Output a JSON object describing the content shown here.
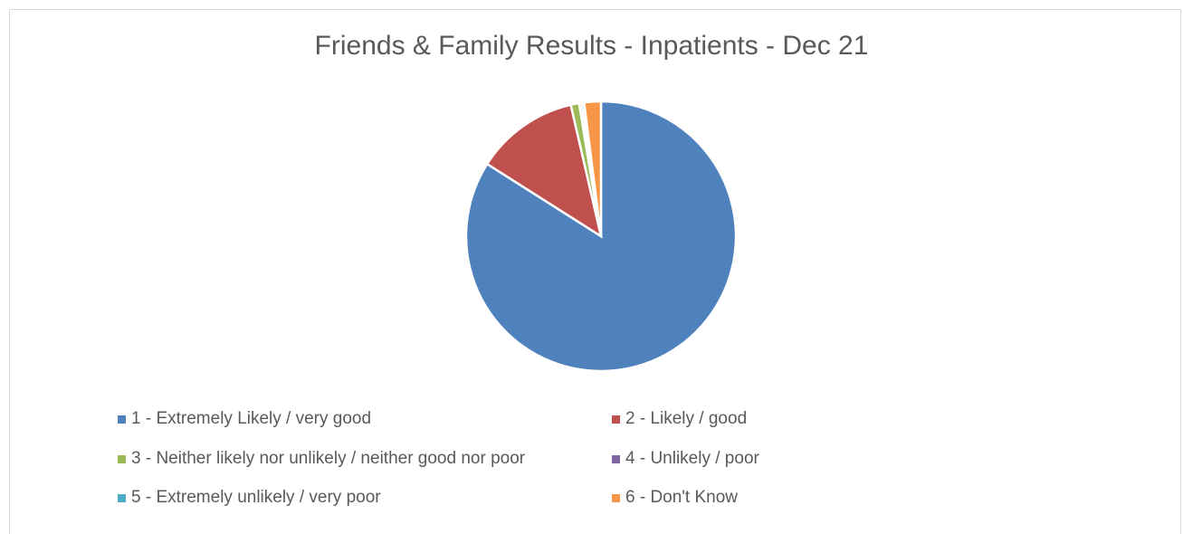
{
  "chart_data": {
    "type": "pie",
    "title": "Friends & Family Results - Inpatients - Dec 21",
    "categories": [
      "1 - Extremely Likely / very good",
      "2 - Likely / good",
      "3 - Neither likely nor unlikely / neither good nor poor",
      "4 - Unlikely / poor",
      "5 - Extremely unlikely / very poor",
      "6 - Don't Know"
    ],
    "values": [
      84.0,
      12.4,
      1.0,
      0.3,
      0.3,
      2.0
    ],
    "colors": [
      "#4f81bd",
      "#c0504d",
      "#9bbb59",
      "#8064a2",
      "#4bacc6",
      "#f79646"
    ],
    "legend_position": "bottom"
  }
}
